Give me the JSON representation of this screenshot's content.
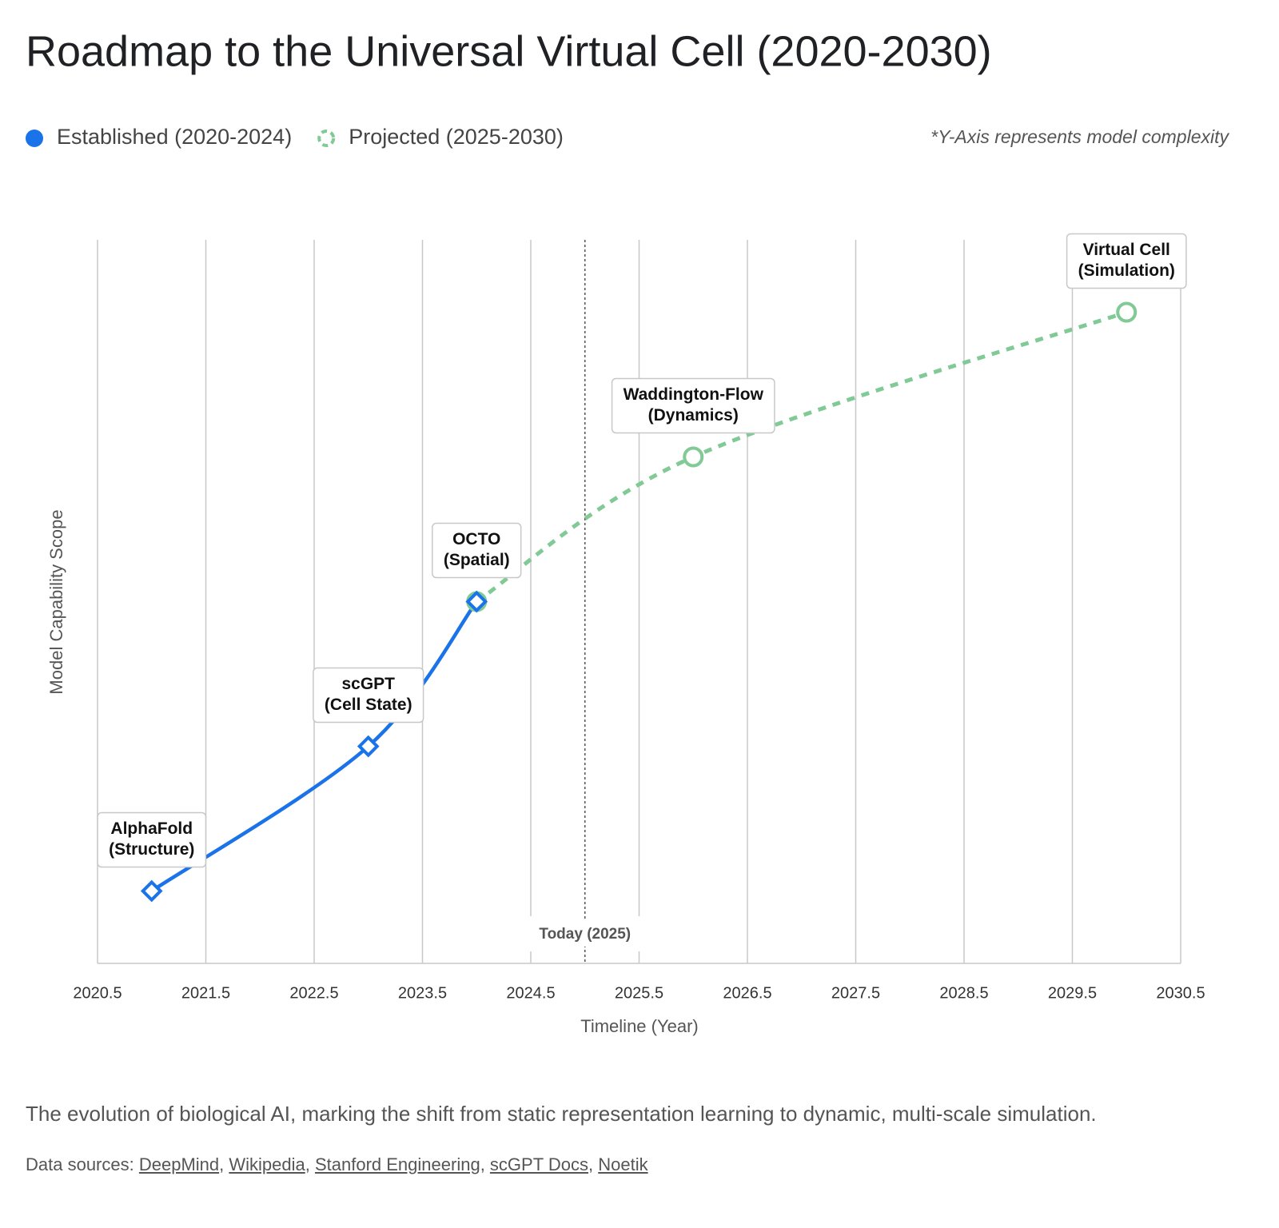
{
  "chart_data": {
    "type": "line",
    "title": "Roadmap to the Universal Virtual Cell (2020-2030)",
    "note": "*Y-Axis represents model complexity",
    "x_label": "Timeline (Year)",
    "y_label": "Model Capability Scope",
    "xlim": [
      2020.5,
      2030.5
    ],
    "xticks": [
      2020.5,
      2021.5,
      2022.5,
      2023.5,
      2024.5,
      2025.5,
      2026.5,
      2027.5,
      2028.5,
      2029.5,
      2030.5
    ],
    "ylim": [
      0,
      100
    ],
    "grid": true,
    "reference_line": {
      "x": 2025,
      "label": "Today (2025)"
    },
    "series": [
      {
        "name": "Established (2020-2024)",
        "color": "#1a73e8",
        "style": "solid",
        "marker": "diamond",
        "x": [
          2021,
          2023,
          2024
        ],
        "values": [
          10,
          30,
          50
        ],
        "point_labels": [
          [
            "AlphaFold",
            "(Structure)"
          ],
          [
            "scGPT",
            "(Cell State)"
          ],
          [
            "OCTO",
            "(Spatial)"
          ]
        ]
      },
      {
        "name": "Projected (2025-2030)",
        "color": "#81c995",
        "style": "dashed",
        "marker": "circle",
        "x": [
          2024,
          2026,
          2030
        ],
        "values": [
          50,
          70,
          90
        ],
        "point_labels": [
          null,
          [
            "Waddington-Flow",
            "(Dynamics)"
          ],
          [
            "Virtual Cell",
            "(Simulation)"
          ]
        ]
      }
    ]
  },
  "caption": "The evolution of biological AI, marking the shift from static representation learning to dynamic, multi-scale simulation.",
  "sources_prefix": "Data sources:",
  "sources_separator": ", ",
  "sources": [
    "DeepMind",
    "Wikipedia",
    "Stanford Engineering",
    "scGPT Docs",
    "Noetik"
  ]
}
